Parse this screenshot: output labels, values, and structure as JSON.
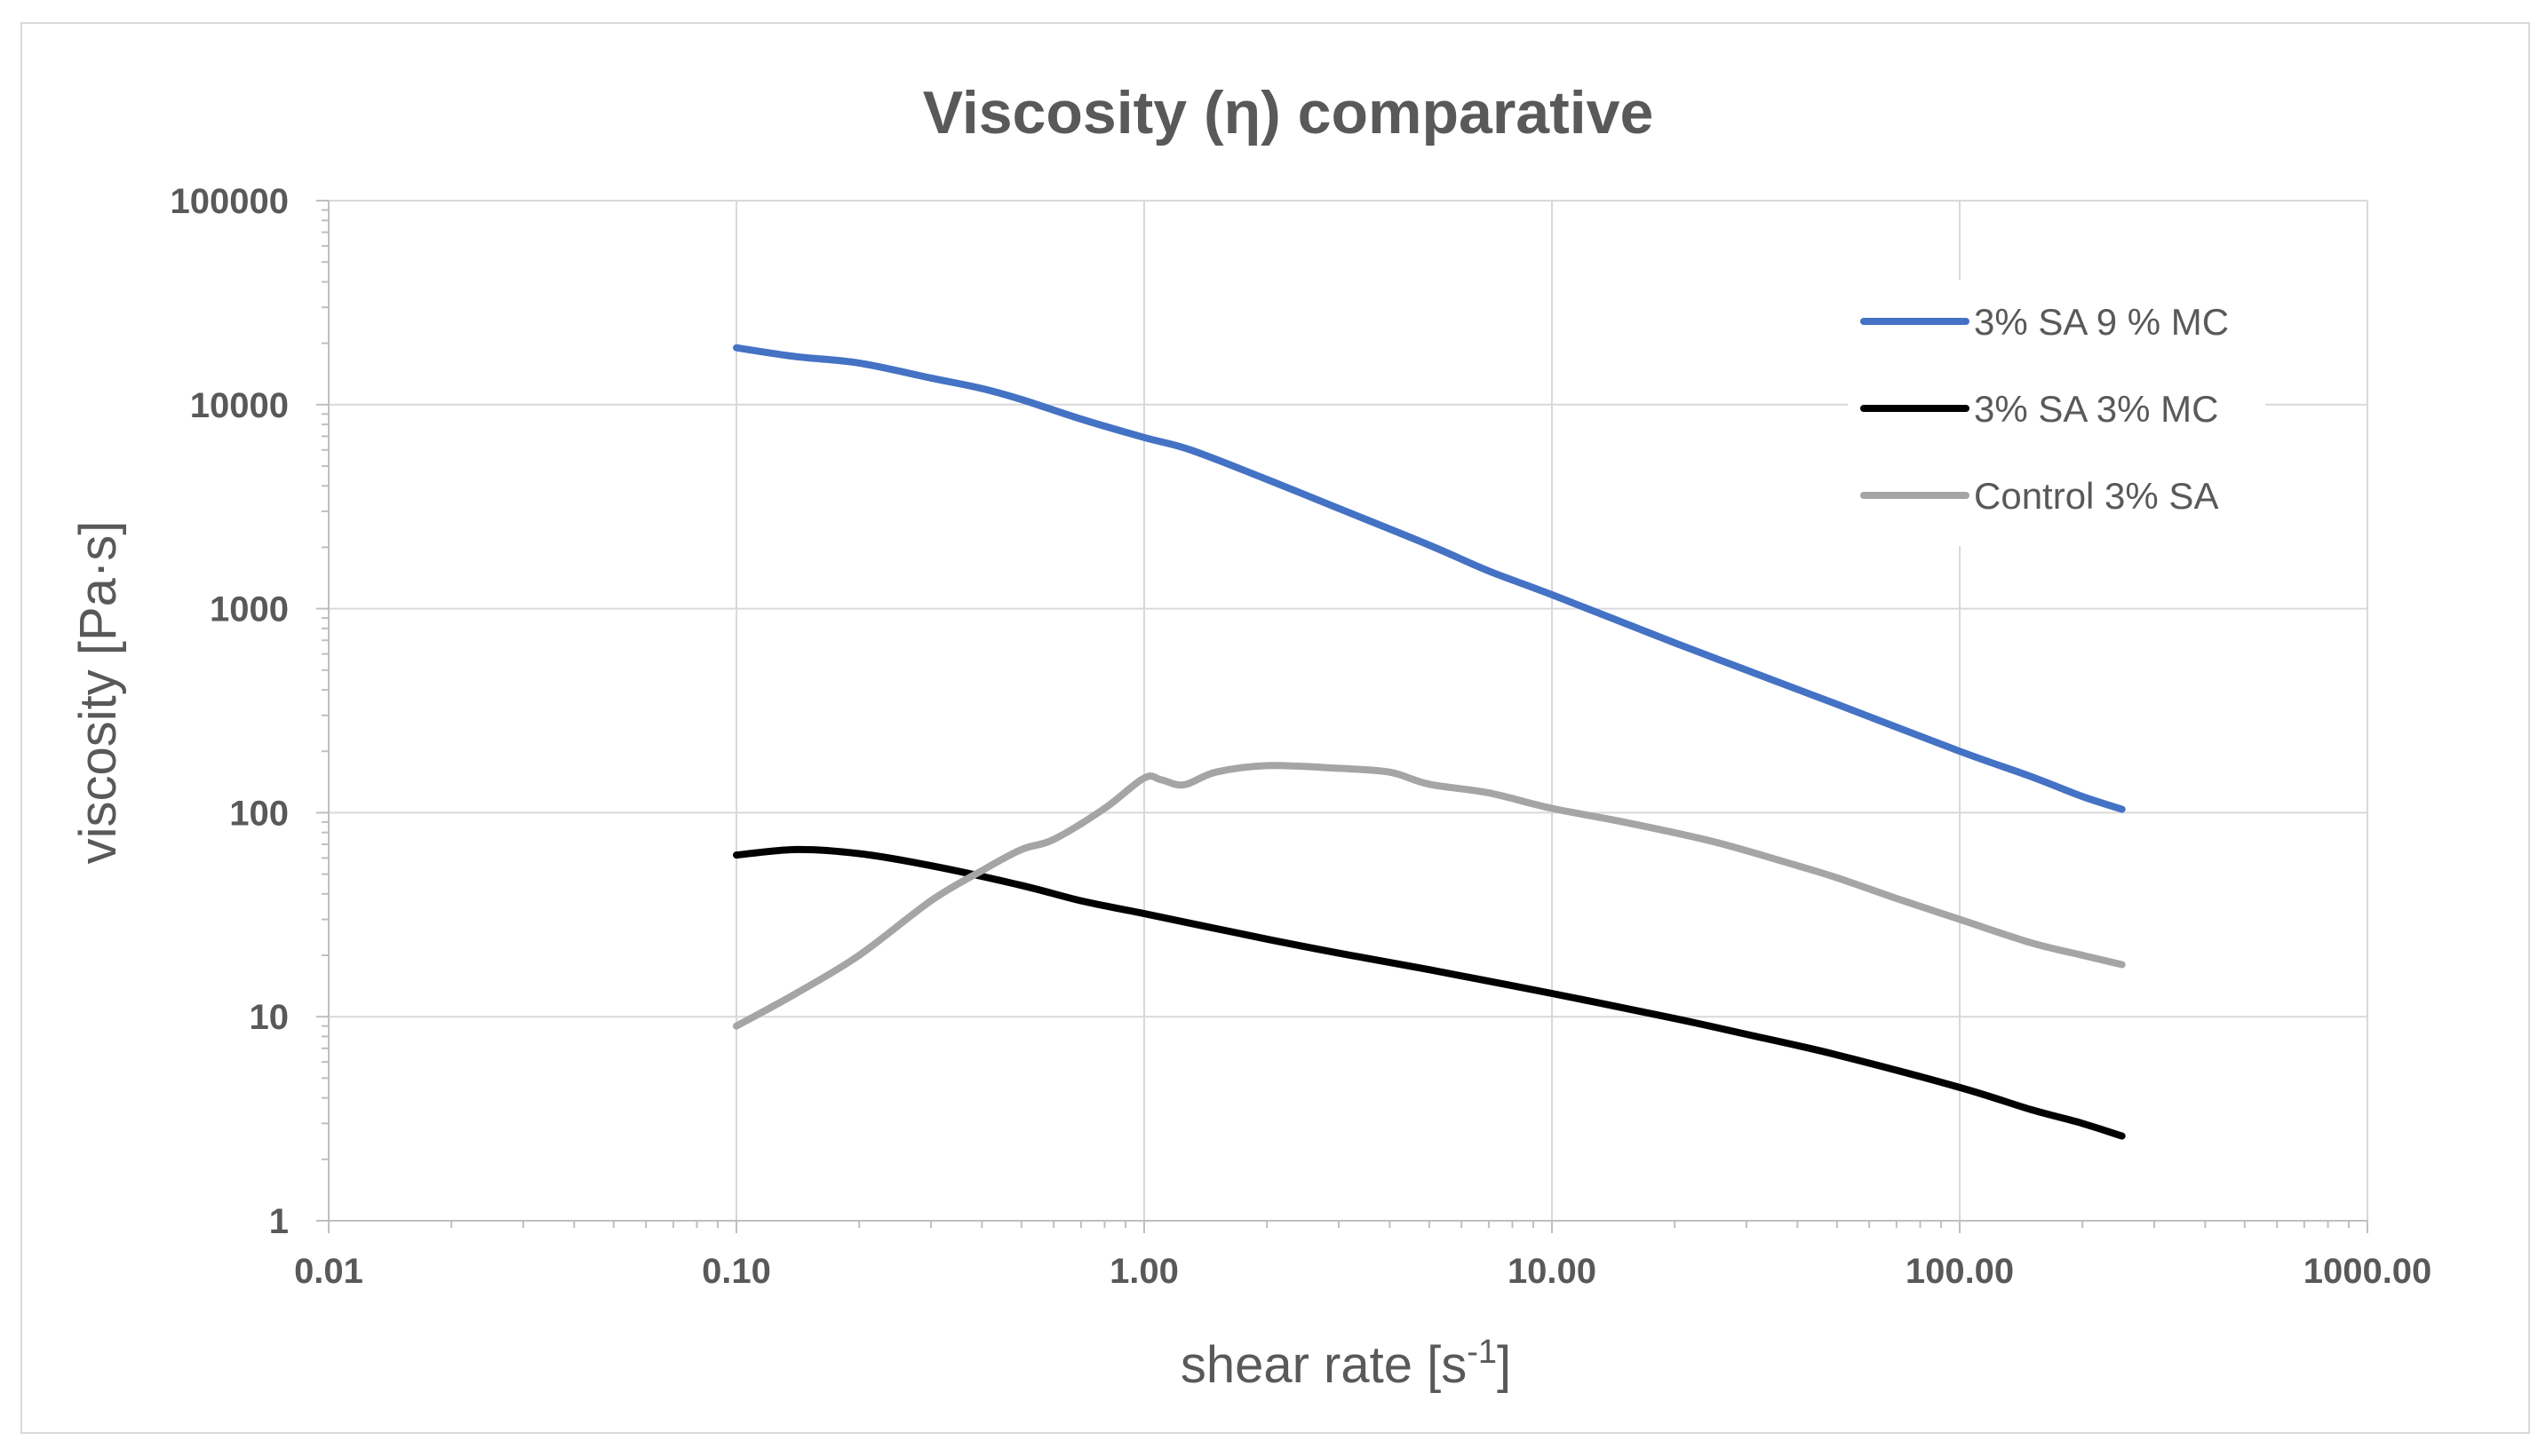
{
  "chart_data": {
    "type": "line",
    "title": "Viscosity (η) comparative",
    "xlabel": "shear rate [s",
    "xlabel_sup": "-1",
    "xlabel_close": "]",
    "ylabel": "viscosity [Pa·s]",
    "xscale": "log",
    "yscale": "log",
    "xlim": [
      0.01,
      1000
    ],
    "ylim": [
      1,
      100000
    ],
    "x_ticks": [
      {
        "value": 0.01,
        "label": "0.01"
      },
      {
        "value": 0.1,
        "label": "0.10"
      },
      {
        "value": 1,
        "label": "1.00"
      },
      {
        "value": 10,
        "label": "10.00"
      },
      {
        "value": 100,
        "label": "100.00"
      },
      {
        "value": 1000,
        "label": "1000.00"
      }
    ],
    "y_ticks": [
      {
        "value": 1,
        "label": "1"
      },
      {
        "value": 10,
        "label": "10"
      },
      {
        "value": 100,
        "label": "100"
      },
      {
        "value": 1000,
        "label": "1000"
      },
      {
        "value": 10000,
        "label": "10000"
      },
      {
        "value": 100000,
        "label": "100000"
      }
    ],
    "grid": true,
    "legend_position": "top-right",
    "series": [
      {
        "name": "3% SA 9 % MC",
        "color": "#4472c4",
        "x": [
          0.1,
          0.14,
          0.2,
          0.3,
          0.4,
          0.5,
          0.7,
          1.0,
          1.3,
          2,
          3,
          5,
          7,
          10,
          20,
          30,
          50,
          100,
          150,
          200,
          250
        ],
        "y": [
          19000,
          17200,
          16000,
          13500,
          12000,
          10600,
          8500,
          6900,
          6000,
          4300,
          3100,
          2050,
          1530,
          1170,
          680,
          500,
          340,
          200,
          150,
          120,
          104
        ]
      },
      {
        "name": "3% SA 3% MC",
        "color": "#000000",
        "x": [
          0.1,
          0.14,
          0.2,
          0.3,
          0.5,
          0.7,
          1.0,
          2,
          3,
          5,
          10,
          20,
          30,
          50,
          100,
          150,
          200,
          250
        ],
        "y": [
          62,
          66,
          63,
          55,
          44,
          37,
          32,
          24,
          20.5,
          17,
          13,
          9.8,
          8.2,
          6.5,
          4.5,
          3.5,
          3.0,
          2.6
        ]
      },
      {
        "name": "Control 3% SA",
        "color": "#a5a5a5",
        "x": [
          0.1,
          0.14,
          0.2,
          0.3,
          0.4,
          0.5,
          0.6,
          0.8,
          1.0,
          1.1,
          1.25,
          1.5,
          2,
          3,
          4,
          5,
          7,
          10,
          15,
          25,
          40,
          50,
          70,
          100,
          150,
          200,
          250
        ],
        "y": [
          9,
          13,
          20,
          37,
          52,
          66,
          74,
          105,
          148,
          145,
          137,
          158,
          170,
          165,
          158,
          138,
          125,
          105,
          90,
          72,
          55,
          48,
          38,
          30,
          23,
          20,
          18
        ]
      }
    ]
  }
}
